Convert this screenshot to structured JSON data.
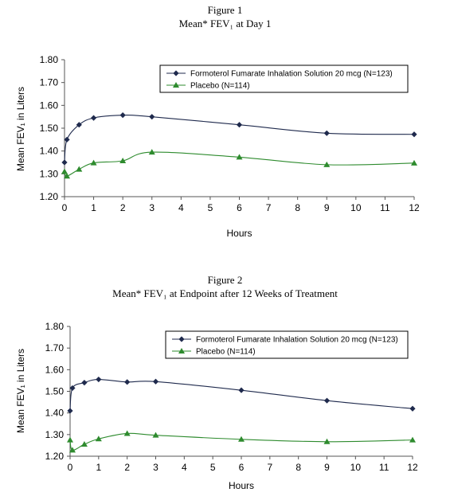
{
  "colors": {
    "series1": "#1f2a4d",
    "series2": "#2e8b2e",
    "axis": "#555555"
  },
  "chart_data": [
    {
      "type": "line",
      "figure_label": "Figure 1",
      "title": "Mean* FEV₁ at Day 1",
      "xlabel": "Hours",
      "ylabel": "Mean FEV₁ in Liters",
      "xlim": [
        0,
        12
      ],
      "ylim": [
        1.2,
        1.8
      ],
      "xticks": [
        "0",
        "1",
        "2",
        "3",
        "4",
        "5",
        "6",
        "7",
        "8",
        "9",
        "10",
        "11",
        "12"
      ],
      "yticks": [
        "1.20",
        "1.30",
        "1.40",
        "1.50",
        "1.60",
        "1.70",
        "1.80"
      ],
      "legend_position": "top-right",
      "series": [
        {
          "name": "Formoterol Fumarate Inhalation Solution 20 mcg (N=123)",
          "marker": "diamond",
          "x": [
            0,
            0.083,
            0.5,
            1,
            2,
            3,
            6,
            9,
            12
          ],
          "y": [
            1.35,
            1.45,
            1.515,
            1.545,
            1.557,
            1.55,
            1.515,
            1.478,
            1.473
          ]
        },
        {
          "name": "Placebo (N=114)",
          "marker": "triangle",
          "x": [
            0,
            0.083,
            0.5,
            1,
            2,
            3,
            6,
            9,
            12
          ],
          "y": [
            1.31,
            1.29,
            1.32,
            1.348,
            1.357,
            1.395,
            1.373,
            1.34,
            1.347
          ]
        }
      ]
    },
    {
      "type": "line",
      "figure_label": "Figure 2",
      "title": "Mean* FEV₁ at Endpoint after 12 Weeks of Treatment",
      "xlabel": "Hours",
      "ylabel": "Mean FEV₁ in Liters",
      "xlim": [
        0,
        12
      ],
      "ylim": [
        1.2,
        1.8
      ],
      "xticks": [
        "0",
        "1",
        "2",
        "3",
        "4",
        "5",
        "6",
        "7",
        "8",
        "9",
        "10",
        "11",
        "12"
      ],
      "yticks": [
        "1.20",
        "1.30",
        "1.40",
        "1.50",
        "1.60",
        "1.70",
        "1.80"
      ],
      "legend_position": "top-right",
      "series": [
        {
          "name": "Formoterol Fumarate Inhalation Solution 20 mcg (N=123)",
          "marker": "diamond",
          "x": [
            0,
            0.083,
            0.5,
            1,
            2,
            3,
            6,
            9,
            12
          ],
          "y": [
            1.41,
            1.515,
            1.54,
            1.555,
            1.543,
            1.545,
            1.505,
            1.457,
            1.42
          ]
        },
        {
          "name": "Placebo (N=114)",
          "marker": "triangle",
          "x": [
            0,
            0.083,
            0.5,
            1,
            2,
            3,
            6,
            9,
            12
          ],
          "y": [
            1.275,
            1.228,
            1.255,
            1.28,
            1.305,
            1.297,
            1.278,
            1.267,
            1.275
          ]
        }
      ]
    }
  ]
}
